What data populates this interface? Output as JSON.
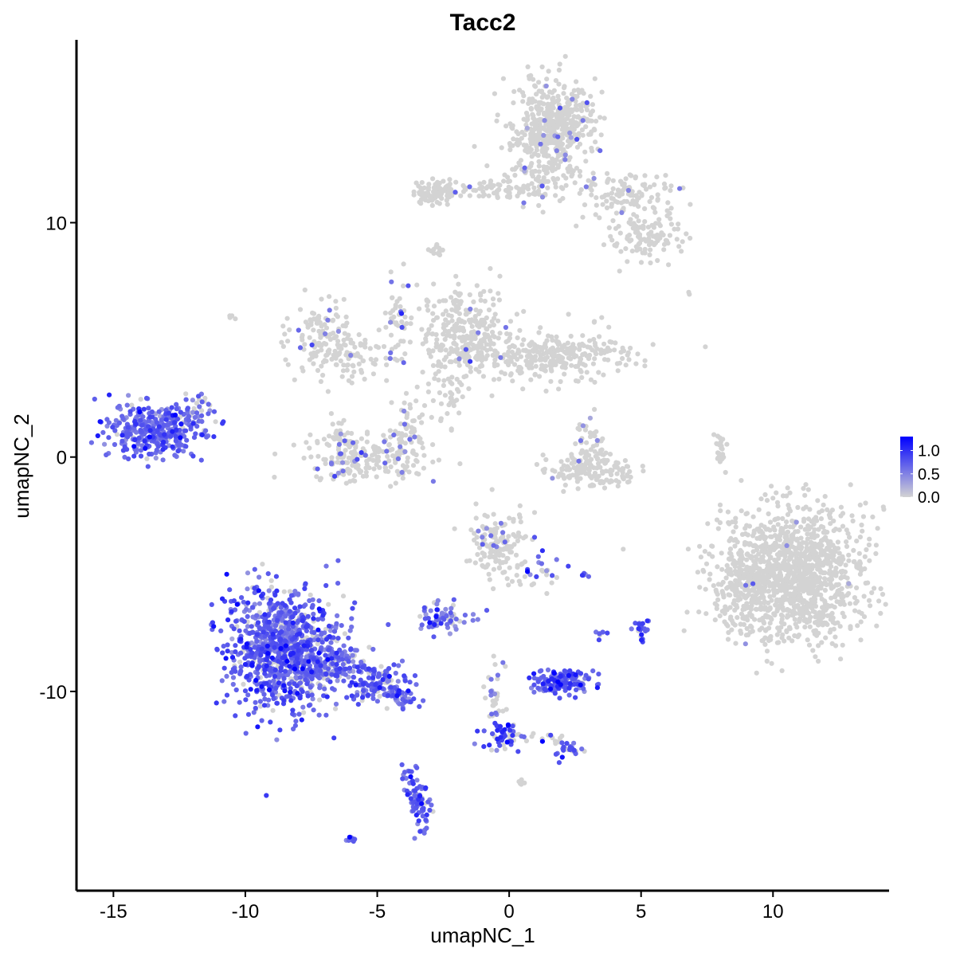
{
  "chart_data": {
    "type": "scatter",
    "title": "Tacc2",
    "xlabel": "umapNC_1",
    "ylabel": "umapNC_2",
    "xlim": [
      -16.4,
      14.4
    ],
    "ylim": [
      -18.5,
      17.8
    ],
    "xticks": [
      -15,
      -10,
      -5,
      0,
      5,
      10
    ],
    "xtick_labels": [
      "-15",
      "-10",
      "-5",
      "0",
      "5",
      "10"
    ],
    "yticks": [
      -10,
      0,
      10
    ],
    "ytick_labels": [
      "-10",
      "0",
      "10"
    ],
    "grid": false,
    "colors": {
      "low": "#d3d3d3",
      "high": "#0000ff",
      "axis": "#000000",
      "background": "#ffffff"
    },
    "legend": {
      "placement": "right",
      "min": 0.0,
      "max": 1.3,
      "ticks": [
        1.0,
        0.5,
        0.0
      ],
      "tick_labels": [
        "1.0",
        "0.5",
        "0.0"
      ]
    },
    "clusters": [
      {
        "cx": 1.7,
        "cy": 14.1,
        "sx": 0.75,
        "sy": 1.0,
        "n": 500,
        "expr_frac": 0.02,
        "expr_mean": 0.5
      },
      {
        "cx": -2.8,
        "cy": 11.3,
        "sx": 0.45,
        "sy": 0.25,
        "n": 90,
        "expr_frac": 0.0,
        "expr_mean": 0.3
      },
      {
        "cx": -0.8,
        "cy": 11.4,
        "sx": 1.0,
        "sy": 0.2,
        "n": 60,
        "expr_frac": 0.04,
        "expr_mean": 0.6
      },
      {
        "cx": 1.1,
        "cy": 11.7,
        "sx": 0.8,
        "sy": 0.6,
        "n": 70,
        "expr_frac": 0.06,
        "expr_mean": 0.6
      },
      {
        "cx": 4.4,
        "cy": 11.2,
        "sx": 1.0,
        "sy": 0.5,
        "n": 120,
        "expr_frac": 0.02,
        "expr_mean": 0.5
      },
      {
        "cx": 5.2,
        "cy": 9.4,
        "sx": 0.8,
        "sy": 0.5,
        "n": 110,
        "expr_frac": 0.01,
        "expr_mean": 0.5
      },
      {
        "cx": -2.7,
        "cy": 8.8,
        "sx": 0.2,
        "sy": 0.15,
        "n": 12,
        "expr_frac": 0.0,
        "expr_mean": 0.3
      },
      {
        "cx": -7.1,
        "cy": 5.2,
        "sx": 0.55,
        "sy": 0.8,
        "n": 110,
        "expr_frac": 0.08,
        "expr_mean": 0.6
      },
      {
        "cx": -5.8,
        "cy": 4.3,
        "sx": 0.9,
        "sy": 0.5,
        "n": 80,
        "expr_frac": 0.05,
        "expr_mean": 0.6
      },
      {
        "cx": -4.4,
        "cy": 5.5,
        "sx": 0.3,
        "sy": 1.3,
        "n": 45,
        "expr_frac": 0.1,
        "expr_mean": 0.6
      },
      {
        "cx": -1.6,
        "cy": 5.2,
        "sx": 0.9,
        "sy": 1.0,
        "n": 300,
        "expr_frac": 0.03,
        "expr_mean": 0.6
      },
      {
        "cx": 1.7,
        "cy": 4.3,
        "sx": 1.5,
        "sy": 0.5,
        "n": 300,
        "expr_frac": 0.01,
        "expr_mean": 0.5
      },
      {
        "cx": -2.4,
        "cy": 2.3,
        "sx": 0.35,
        "sy": 0.7,
        "n": 30,
        "expr_frac": 0.0,
        "expr_mean": 0.3
      },
      {
        "cx": -5.5,
        "cy": 0.0,
        "sx": 1.1,
        "sy": 0.5,
        "n": 180,
        "expr_frac": 0.12,
        "expr_mean": 0.6
      },
      {
        "cx": -3.8,
        "cy": 1.0,
        "sx": 0.35,
        "sy": 0.8,
        "n": 70,
        "expr_frac": 0.1,
        "expr_mean": 0.6
      },
      {
        "cx": -6.3,
        "cy": 0.6,
        "sx": 0.3,
        "sy": 0.6,
        "n": 40,
        "expr_frac": 0.1,
        "expr_mean": 0.6
      },
      {
        "cx": -13.4,
        "cy": 1.1,
        "sx": 0.85,
        "sy": 0.55,
        "n": 360,
        "expr_frac": 0.9,
        "expr_mean": 0.65
      },
      {
        "cx": -12.1,
        "cy": 1.8,
        "sx": 0.4,
        "sy": 0.4,
        "n": 40,
        "expr_frac": 0.7,
        "expr_mean": 0.6
      },
      {
        "cx": 3.1,
        "cy": -0.6,
        "sx": 0.8,
        "sy": 0.35,
        "n": 150,
        "expr_frac": 0.02,
        "expr_mean": 0.6
      },
      {
        "cx": 3.1,
        "cy": 0.7,
        "sx": 0.3,
        "sy": 0.5,
        "n": 40,
        "expr_frac": 0.05,
        "expr_mean": 0.6
      },
      {
        "cx": 8.0,
        "cy": 0.3,
        "sx": 0.15,
        "sy": 0.5,
        "n": 25,
        "expr_frac": 0.0,
        "expr_mean": 0.3
      },
      {
        "cx": 10.8,
        "cy": -5.0,
        "sx": 1.35,
        "sy": 1.4,
        "n": 1200,
        "expr_frac": 0.002,
        "expr_mean": 0.5
      },
      {
        "cx": 9.0,
        "cy": -5.4,
        "sx": 0.6,
        "sy": 1.0,
        "n": 150,
        "expr_frac": 0.005,
        "expr_mean": 0.5
      },
      {
        "cx": -0.4,
        "cy": -3.7,
        "sx": 0.6,
        "sy": 0.7,
        "n": 150,
        "expr_frac": 0.06,
        "expr_mean": 0.6
      },
      {
        "cx": 0.9,
        "cy": -4.9,
        "sx": 0.45,
        "sy": 0.4,
        "n": 30,
        "expr_frac": 0.25,
        "expr_mean": 0.6
      },
      {
        "cx": -8.6,
        "cy": -8.2,
        "sx": 1.05,
        "sy": 1.3,
        "n": 950,
        "expr_frac": 0.85,
        "expr_mean": 0.7
      },
      {
        "cx": -6.8,
        "cy": -8.9,
        "sx": 0.7,
        "sy": 0.5,
        "n": 120,
        "expr_frac": 0.85,
        "expr_mean": 0.6
      },
      {
        "cx": -5.0,
        "cy": -9.6,
        "sx": 0.6,
        "sy": 0.4,
        "n": 120,
        "expr_frac": 0.9,
        "expr_mean": 0.7
      },
      {
        "cx": -4.1,
        "cy": -10.3,
        "sx": 0.3,
        "sy": 0.25,
        "n": 30,
        "expr_frac": 0.85,
        "expr_mean": 0.6
      },
      {
        "cx": -2.5,
        "cy": -6.9,
        "sx": 0.5,
        "sy": 0.3,
        "n": 70,
        "expr_frac": 0.7,
        "expr_mean": 0.6
      },
      {
        "cx": 2.1,
        "cy": -9.6,
        "sx": 0.55,
        "sy": 0.25,
        "n": 150,
        "expr_frac": 0.95,
        "expr_mean": 0.7
      },
      {
        "cx": -0.5,
        "cy": -10.2,
        "sx": 0.2,
        "sy": 0.9,
        "n": 30,
        "expr_frac": 0.2,
        "expr_mean": 0.6
      },
      {
        "cx": -0.3,
        "cy": -11.8,
        "sx": 0.3,
        "sy": 0.3,
        "n": 40,
        "expr_frac": 0.9,
        "expr_mean": 0.9
      },
      {
        "cx": 0.9,
        "cy": -12.0,
        "sx": 0.8,
        "sy": 0.2,
        "n": 25,
        "expr_frac": 0.3,
        "expr_mean": 0.6
      },
      {
        "cx": 2.2,
        "cy": -12.5,
        "sx": 0.25,
        "sy": 0.25,
        "n": 25,
        "expr_frac": 0.8,
        "expr_mean": 0.7
      },
      {
        "cx": -3.4,
        "cy": -15.0,
        "sx": 0.2,
        "sy": 0.5,
        "n": 55,
        "expr_frac": 0.95,
        "expr_mean": 0.7
      },
      {
        "cx": -3.7,
        "cy": -13.8,
        "sx": 0.15,
        "sy": 0.6,
        "n": 25,
        "expr_frac": 0.9,
        "expr_mean": 0.7
      },
      {
        "cx": -6.0,
        "cy": -16.3,
        "sx": 0.08,
        "sy": 0.05,
        "n": 10,
        "expr_frac": 1.0,
        "expr_mean": 0.6
      },
      {
        "cx": 5.0,
        "cy": -7.3,
        "sx": 0.2,
        "sy": 0.3,
        "n": 20,
        "expr_frac": 0.8,
        "expr_mean": 0.8
      },
      {
        "cx": 2.9,
        "cy": -5.0,
        "sx": 0.1,
        "sy": 0.05,
        "n": 5,
        "expr_frac": 0.8,
        "expr_mean": 0.7
      },
      {
        "cx": 3.5,
        "cy": -7.7,
        "sx": 0.15,
        "sy": 0.15,
        "n": 6,
        "expr_frac": 0.7,
        "expr_mean": 0.6
      },
      {
        "cx": 0.5,
        "cy": -13.9,
        "sx": 0.1,
        "sy": 0.1,
        "n": 5,
        "expr_frac": 0.0,
        "expr_mean": 0.3
      },
      {
        "cx": -10.6,
        "cy": 6.0,
        "sx": 0.1,
        "sy": 0.1,
        "n": 4,
        "expr_frac": 0.0,
        "expr_mean": 0.3
      },
      {
        "cx": 6.8,
        "cy": 7.0,
        "sx": 0.05,
        "sy": 0.05,
        "n": 2,
        "expr_frac": 0.0,
        "expr_mean": 0.3
      }
    ]
  }
}
